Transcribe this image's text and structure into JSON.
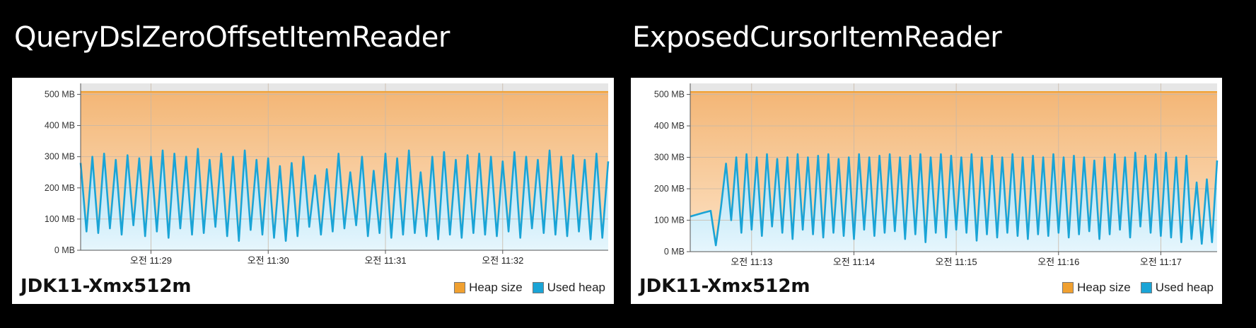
{
  "chart_data": [
    {
      "type": "area",
      "title": "QueryDslZeroOffsetItemReader",
      "caption": "JDK11-Xmx512m",
      "y_unit": "MB",
      "ylim": [
        0,
        535
      ],
      "y_ticks": [
        "0 MB",
        "100 MB",
        "200 MB",
        "300 MB",
        "400 MB",
        "500 MB"
      ],
      "y_tick_values": [
        0,
        100,
        200,
        300,
        400,
        500
      ],
      "x_ticks": [
        "오전 11:29",
        "오전 11:30",
        "오전 11:31",
        "오전 11:32"
      ],
      "xlim": [
        "11:28:24",
        "11:32:54"
      ],
      "x_tick_values": [
        "11:29:00",
        "11:30:00",
        "11:31:00",
        "11:32:00"
      ],
      "grid": true,
      "legend": "bottom-right",
      "series": [
        {
          "name": "Heap size",
          "color": "#f0a030",
          "x": [
            "11:28:24",
            "11:32:54"
          ],
          "y": [
            508,
            508
          ]
        },
        {
          "name": "Used heap",
          "color": "#1aa4d6",
          "x": [
            "11:28:24",
            "11:28:27",
            "11:28:30",
            "11:28:33",
            "11:28:36",
            "11:28:39",
            "11:28:42",
            "11:28:45",
            "11:28:48",
            "11:28:51",
            "11:28:54",
            "11:28:57",
            "11:29:00",
            "11:29:03",
            "11:29:06",
            "11:29:09",
            "11:29:12",
            "11:29:15",
            "11:29:18",
            "11:29:21",
            "11:29:24",
            "11:29:27",
            "11:29:30",
            "11:29:33",
            "11:29:36",
            "11:29:39",
            "11:29:42",
            "11:29:45",
            "11:29:48",
            "11:29:51",
            "11:29:54",
            "11:29:57",
            "11:30:00",
            "11:30:03",
            "11:30:06",
            "11:30:09",
            "11:30:12",
            "11:30:15",
            "11:30:18",
            "11:30:21",
            "11:30:24",
            "11:30:27",
            "11:30:30",
            "11:30:33",
            "11:30:36",
            "11:30:39",
            "11:30:42",
            "11:30:45",
            "11:30:48",
            "11:30:51",
            "11:30:54",
            "11:30:57",
            "11:31:00",
            "11:31:03",
            "11:31:06",
            "11:31:09",
            "11:31:12",
            "11:31:15",
            "11:31:18",
            "11:31:21",
            "11:31:24",
            "11:31:27",
            "11:31:30",
            "11:31:33",
            "11:31:36",
            "11:31:39",
            "11:31:42",
            "11:31:45",
            "11:31:48",
            "11:31:51",
            "11:31:54",
            "11:31:57",
            "11:32:00",
            "11:32:03",
            "11:32:06",
            "11:32:09",
            "11:32:12",
            "11:32:15",
            "11:32:18",
            "11:32:21",
            "11:32:24",
            "11:32:27",
            "11:32:30",
            "11:32:33",
            "11:32:36",
            "11:32:39",
            "11:32:42",
            "11:32:45",
            "11:32:48",
            "11:32:51",
            "11:32:54"
          ],
          "y": [
            280,
            60,
            300,
            55,
            310,
            70,
            290,
            50,
            305,
            80,
            295,
            45,
            300,
            60,
            320,
            40,
            310,
            70,
            300,
            50,
            325,
            55,
            290,
            75,
            310,
            45,
            300,
            30,
            320,
            65,
            290,
            50,
            295,
            40,
            270,
            30,
            280,
            45,
            300,
            75,
            240,
            50,
            260,
            60,
            310,
            70,
            250,
            80,
            300,
            45,
            255,
            55,
            310,
            40,
            295,
            50,
            320,
            55,
            250,
            45,
            300,
            35,
            315,
            50,
            290,
            40,
            305,
            55,
            310,
            50,
            300,
            45,
            285,
            60,
            315,
            40,
            300,
            70,
            290,
            55,
            320,
            50,
            300,
            45,
            305,
            60,
            290,
            35,
            310,
            40,
            285
          ]
        }
      ]
    },
    {
      "type": "area",
      "title": "ExposedCursorItemReader",
      "caption": "JDK11-Xmx512m",
      "y_unit": "MB",
      "ylim": [
        0,
        535
      ],
      "y_ticks": [
        "0 MB",
        "100 MB",
        "200 MB",
        "300 MB",
        "400 MB",
        "500 MB"
      ],
      "y_tick_values": [
        0,
        100,
        200,
        300,
        400,
        500
      ],
      "x_ticks": [
        "오전 11:13",
        "오전 11:14",
        "오전 11:15",
        "오전 11:16",
        "오전 11:17"
      ],
      "xlim": [
        "11:12:24",
        "11:17:33"
      ],
      "x_tick_values": [
        "11:13:00",
        "11:14:00",
        "11:15:00",
        "11:16:00",
        "11:17:00"
      ],
      "grid": true,
      "legend": "bottom-right",
      "series": [
        {
          "name": "Heap size",
          "color": "#f0a030",
          "x": [
            "11:12:24",
            "11:17:33"
          ],
          "y": [
            508,
            508
          ]
        },
        {
          "name": "Used heap",
          "color": "#1aa4d6",
          "x": [
            "11:12:24",
            "11:12:28",
            "11:12:32",
            "11:12:36",
            "11:12:39",
            "11:12:42",
            "11:12:45",
            "11:12:48",
            "11:12:51",
            "11:12:54",
            "11:12:57",
            "11:13:00",
            "11:13:03",
            "11:13:06",
            "11:13:09",
            "11:13:12",
            "11:13:15",
            "11:13:18",
            "11:13:21",
            "11:13:24",
            "11:13:27",
            "11:13:30",
            "11:13:33",
            "11:13:36",
            "11:13:39",
            "11:13:42",
            "11:13:45",
            "11:13:48",
            "11:13:51",
            "11:13:54",
            "11:13:57",
            "11:14:00",
            "11:14:03",
            "11:14:06",
            "11:14:09",
            "11:14:12",
            "11:14:15",
            "11:14:18",
            "11:14:21",
            "11:14:24",
            "11:14:27",
            "11:14:30",
            "11:14:33",
            "11:14:36",
            "11:14:39",
            "11:14:42",
            "11:14:45",
            "11:14:48",
            "11:14:51",
            "11:14:54",
            "11:14:57",
            "11:15:00",
            "11:15:03",
            "11:15:06",
            "11:15:09",
            "11:15:12",
            "11:15:15",
            "11:15:18",
            "11:15:21",
            "11:15:24",
            "11:15:27",
            "11:15:30",
            "11:15:33",
            "11:15:36",
            "11:15:39",
            "11:15:42",
            "11:15:45",
            "11:15:48",
            "11:15:51",
            "11:15:54",
            "11:15:57",
            "11:16:00",
            "11:16:03",
            "11:16:06",
            "11:16:09",
            "11:16:12",
            "11:16:15",
            "11:16:18",
            "11:16:21",
            "11:16:24",
            "11:16:27",
            "11:16:30",
            "11:16:33",
            "11:16:36",
            "11:16:39",
            "11:16:42",
            "11:16:45",
            "11:16:48",
            "11:16:51",
            "11:16:54",
            "11:16:57",
            "11:17:00",
            "11:17:03",
            "11:17:06",
            "11:17:09",
            "11:17:12",
            "11:17:15",
            "11:17:18",
            "11:17:21",
            "11:17:24",
            "11:17:27",
            "11:17:30",
            "11:17:33"
          ],
          "y": [
            112,
            118,
            124,
            130,
            20,
            140,
            280,
            100,
            300,
            60,
            310,
            70,
            300,
            50,
            310,
            80,
            295,
            60,
            300,
            40,
            310,
            70,
            300,
            55,
            305,
            45,
            310,
            60,
            295,
            50,
            300,
            40,
            310,
            70,
            300,
            50,
            305,
            60,
            310,
            65,
            300,
            40,
            305,
            55,
            310,
            30,
            300,
            60,
            310,
            45,
            305,
            70,
            300,
            60,
            310,
            35,
            300,
            55,
            305,
            45,
            300,
            60,
            310,
            50,
            300,
            40,
            305,
            55,
            300,
            50,
            310,
            60,
            300,
            45,
            305,
            55,
            300,
            65,
            290,
            40,
            300,
            55,
            310,
            70,
            300,
            45,
            315,
            80,
            305,
            60,
            310,
            50,
            315,
            45,
            300,
            30,
            305,
            40,
            220,
            25,
            230,
            30,
            290
          ]
        }
      ]
    }
  ]
}
